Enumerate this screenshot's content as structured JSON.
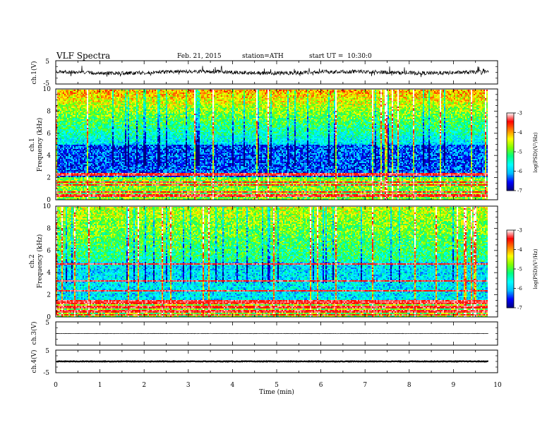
{
  "header": {
    "title": "VLF  Spectra",
    "date": "Feb. 21, 2015",
    "station": "station=ATH",
    "start_label": "start  UT  =",
    "start_time": "10:30:0"
  },
  "chart_data": [
    {
      "type": "line",
      "title": "",
      "ylabel": "ch.1(V)",
      "ylim": [
        -5,
        5
      ],
      "yticks": [
        "5",
        "-5"
      ],
      "xlim": [
        0,
        10
      ],
      "signal": {
        "baseline": 0,
        "amplitude": 1.0,
        "duration_min": 9.8,
        "character": "noisy waveform with sferic spikes"
      }
    },
    {
      "type": "heatmap",
      "title": "",
      "ylabel_line1": "ch.1",
      "ylabel_line2": "Frequency  (kHz)",
      "ylim": [
        0,
        10
      ],
      "yticks": [
        "0",
        "2",
        "4",
        "6",
        "8",
        "10"
      ],
      "xlim": [
        0,
        10
      ],
      "duration_min": 9.8,
      "colorbar": {
        "label": "log(PSD)(V²/Hz)",
        "range": [
          -7,
          -3
        ],
        "ticks": [
          "-3",
          "-4",
          "-5",
          "-6",
          "-7"
        ]
      }
    },
    {
      "type": "heatmap",
      "title": "",
      "ylabel_line1": "ch.2",
      "ylabel_line2": "Frequency  (kHz)",
      "ylim": [
        0,
        10
      ],
      "yticks": [
        "0",
        "2",
        "4",
        "6",
        "8",
        "10"
      ],
      "xlim": [
        0,
        10
      ],
      "duration_min": 9.8,
      "colorbar": {
        "label": "log(PSD)(V²/Hz)",
        "range": [
          -7,
          -3
        ],
        "ticks": [
          "-3",
          "-4",
          "-5",
          "-6",
          "-7"
        ]
      }
    },
    {
      "type": "line",
      "title": "",
      "ylabel": "ch.3(V)",
      "ylim": [
        -5,
        5
      ],
      "yticks": [
        "5"
      ],
      "xlim": [
        0,
        10
      ],
      "signal": {
        "baseline": 0,
        "amplitude": 0.1,
        "duration_min": 9.8
      }
    },
    {
      "type": "line",
      "title": "",
      "ylabel": "ch.4(V)",
      "ylim": [
        -5,
        5
      ],
      "yticks": [
        "5",
        "-5"
      ],
      "xlim": [
        0,
        10
      ],
      "signal": {
        "baseline": 0,
        "amplitude": 0.15,
        "duration_min": 9.8
      }
    }
  ],
  "x_axis": {
    "label": "Time  (min)",
    "ticks": [
      "0",
      "1",
      "2",
      "3",
      "4",
      "5",
      "6",
      "7",
      "8",
      "9",
      "10"
    ]
  },
  "colors": {
    "colormap": [
      "#000080",
      "#0000ff",
      "#00bfff",
      "#00ffff",
      "#00ff80",
      "#80ff00",
      "#ffff00",
      "#ff8000",
      "#ff0000",
      "#ffffff"
    ]
  }
}
